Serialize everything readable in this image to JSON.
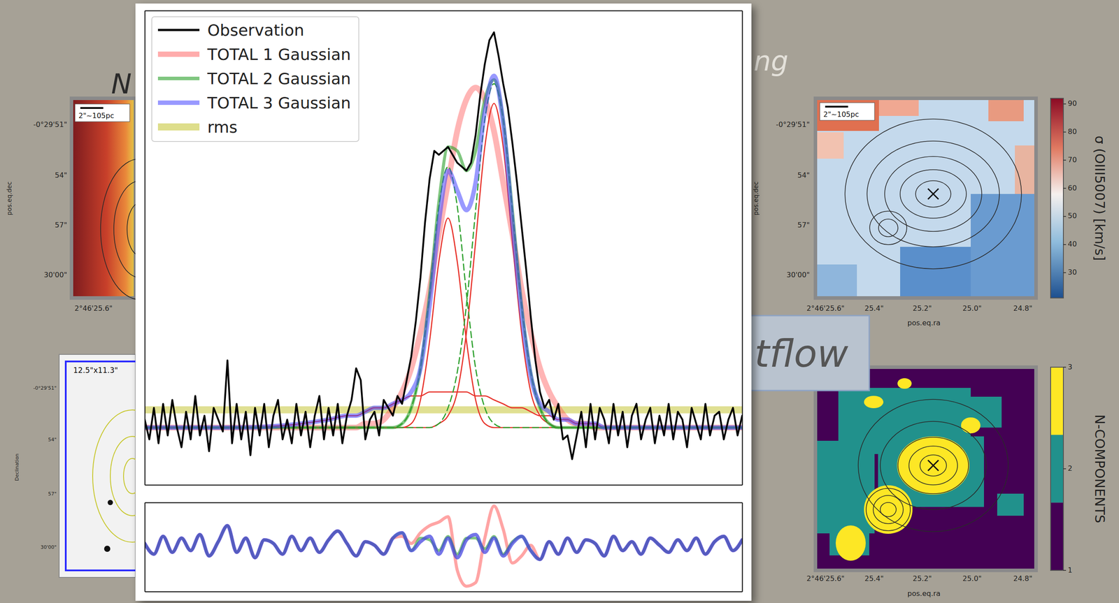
{
  "chart_data": [
    {
      "type": "line",
      "xlim": [
        0,
        130
      ],
      "ylim": [
        -0.145,
        1.055
      ],
      "tick_labels": false,
      "legend": "upper left",
      "x": [
        0,
        20,
        40,
        44,
        46,
        48,
        50,
        52,
        54,
        56,
        58,
        60,
        62,
        64,
        66,
        68,
        70,
        72,
        74,
        76,
        78,
        80,
        82,
        84,
        86,
        88,
        90,
        92,
        94,
        96,
        98,
        100,
        102,
        104,
        106,
        108,
        110,
        120,
        130
      ],
      "series": [
        {
          "name": "Observation",
          "color": "#000000",
          "line_style": "solid",
          "x": [
            0,
            1,
            2,
            3,
            4,
            5,
            6,
            7,
            8,
            9,
            10,
            11,
            12,
            13,
            14,
            15,
            16,
            17,
            18,
            19,
            20,
            21,
            22,
            23,
            24,
            25,
            26,
            27,
            28,
            29,
            30,
            31,
            32,
            33,
            34,
            35,
            36,
            37,
            38,
            39,
            40,
            41,
            42,
            43,
            44,
            45,
            46,
            47,
            48,
            49,
            50,
            51,
            52,
            53,
            54,
            55,
            56,
            57,
            58,
            59,
            60,
            61,
            62,
            63,
            64,
            65,
            66,
            67,
            68,
            69,
            70,
            71,
            72,
            73,
            74,
            75,
            76,
            77,
            78,
            79,
            80,
            81,
            82,
            83,
            84,
            85,
            86,
            87,
            88,
            89,
            90,
            91,
            92,
            93,
            94,
            95,
            96,
            97,
            98,
            99,
            100,
            101,
            102,
            103,
            104,
            105,
            106,
            107,
            108,
            109,
            110,
            111,
            112,
            113,
            114,
            115,
            116,
            117,
            118,
            119,
            120,
            121,
            122,
            123,
            124,
            125,
            126,
            127,
            128,
            129,
            130
          ],
          "values": [
            0.02,
            -0.03,
            0.05,
            -0.04,
            0.06,
            -0.02,
            0.07,
            0.0,
            -0.05,
            0.04,
            -0.03,
            0.08,
            -0.02,
            0.03,
            -0.06,
            0.05,
            0.02,
            -0.01,
            0.17,
            -0.04,
            0.06,
            -0.03,
            0.04,
            -0.07,
            0.05,
            -0.02,
            0.06,
            -0.05,
            0.03,
            0.07,
            -0.03,
            0.02,
            -0.04,
            0.06,
            -0.02,
            0.04,
            -0.05,
            0.03,
            0.08,
            -0.03,
            0.05,
            -0.02,
            0.06,
            -0.04,
            0.03,
            0.07,
            0.15,
            0.12,
            -0.03,
            0.02,
            0.04,
            -0.02,
            0.07,
            0.05,
            0.03,
            0.08,
            0.06,
            0.12,
            0.18,
            0.27,
            0.38,
            0.52,
            0.63,
            0.7,
            0.69,
            0.7,
            0.71,
            0.69,
            0.67,
            0.66,
            0.65,
            0.67,
            0.74,
            0.84,
            0.92,
            0.98,
            1.0,
            0.94,
            0.87,
            0.81,
            0.72,
            0.62,
            0.51,
            0.4,
            0.28,
            0.17,
            0.09,
            0.05,
            0.07,
            0.02,
            0.06,
            -0.03,
            -0.02,
            -0.08,
            -0.02,
            0.04,
            -0.05,
            0.06,
            -0.03,
            0.05,
            0.02,
            -0.04,
            0.06,
            -0.02,
            0.04,
            -0.05,
            0.03,
            0.06,
            -0.03,
            0.02,
            0.05,
            -0.04,
            0.03,
            -0.02,
            0.06,
            -0.03,
            0.04,
            0.02,
            -0.05,
            0.05,
            0.01,
            -0.03,
            0.06,
            -0.02,
            0.03,
            0.04,
            -0.03,
            0.02,
            0.05,
            -0.02,
            0.03
          ]
        },
        {
          "name": "TOTAL 1 Gaussian",
          "color": "#ff5a5a",
          "line_style": "solid",
          "values": [
            0,
            0,
            0,
            0,
            0,
            0.01,
            0.01,
            0.02,
            0.05,
            0.09,
            0.15,
            0.24,
            0.35,
            0.49,
            0.62,
            0.75,
            0.83,
            0.86,
            0.83,
            0.75,
            0.62,
            0.49,
            0.35,
            0.24,
            0.15,
            0.09,
            0.05,
            0.02,
            0.01,
            0.01,
            0,
            0,
            0,
            0,
            0,
            0,
            0,
            0,
            0
          ]
        },
        {
          "name": "TOTAL 2 Gaussian",
          "color": "#2ca02c",
          "line_style": "solid",
          "values": [
            0,
            0,
            0,
            0,
            0,
            0,
            0,
            0,
            0,
            0.01,
            0.05,
            0.15,
            0.34,
            0.57,
            0.71,
            0.7,
            0.65,
            0.7,
            0.83,
            0.88,
            0.78,
            0.55,
            0.31,
            0.14,
            0.05,
            0.01,
            0,
            0,
            0,
            0,
            0,
            0,
            0,
            0,
            0,
            0,
            0,
            0,
            0
          ]
        },
        {
          "name": "TOTAL 3 Gaussian",
          "color": "#4646ff",
          "line_style": "solid",
          "values": [
            0,
            0,
            0.02,
            0.03,
            0.03,
            0.04,
            0.05,
            0.05,
            0.06,
            0.07,
            0.09,
            0.15,
            0.31,
            0.52,
            0.65,
            0.6,
            0.55,
            0.62,
            0.8,
            0.89,
            0.77,
            0.52,
            0.29,
            0.13,
            0.06,
            0.04,
            0.02,
            0.02,
            0.01,
            0.01,
            0.01,
            0,
            0,
            0,
            0,
            0,
            0,
            0,
            0
          ]
        },
        {
          "name": "rms",
          "color": "#d6d66e",
          "line_style": "solid",
          "x": [
            0,
            130
          ],
          "values": [
            0.045,
            0.045
          ]
        }
      ],
      "components": [
        {
          "color": "#e8322a",
          "line_style": "solid",
          "values": [
            0,
            0,
            0,
            0,
            0,
            0,
            0,
            0,
            0,
            0,
            0.01,
            0.07,
            0.22,
            0.42,
            0.53,
            0.42,
            0.22,
            0.07,
            0.01,
            0,
            0,
            0,
            0,
            0,
            0,
            0,
            0,
            0,
            0,
            0,
            0,
            0,
            0,
            0,
            0,
            0,
            0,
            0,
            0
          ]
        },
        {
          "color": "#e8322a",
          "line_style": "solid",
          "values": [
            0,
            0,
            0,
            0,
            0,
            0,
            0,
            0,
            0,
            0,
            0,
            0,
            0,
            0.01,
            0.03,
            0.09,
            0.24,
            0.47,
            0.71,
            0.82,
            0.71,
            0.47,
            0.24,
            0.09,
            0.03,
            0.01,
            0,
            0,
            0,
            0,
            0,
            0,
            0,
            0,
            0,
            0,
            0,
            0,
            0
          ]
        },
        {
          "color": "#e8322a",
          "line_style": "solid",
          "values": [
            0,
            0,
            0.02,
            0.03,
            0.03,
            0.04,
            0.05,
            0.05,
            0.06,
            0.07,
            0.08,
            0.08,
            0.09,
            0.09,
            0.09,
            0.09,
            0.09,
            0.08,
            0.08,
            0.07,
            0.06,
            0.05,
            0.05,
            0.04,
            0.03,
            0.03,
            0.02,
            0.02,
            0.01,
            0.01,
            0.01,
            0,
            0,
            0,
            0,
            0,
            0,
            0,
            0
          ]
        },
        {
          "color": "#2ca02c",
          "line_style": "dashed",
          "values": [
            0,
            0,
            0,
            0,
            0,
            0,
            0,
            0,
            0,
            0.01,
            0.05,
            0.15,
            0.34,
            0.56,
            0.66,
            0.56,
            0.34,
            0.15,
            0.05,
            0.01,
            0,
            0,
            0,
            0,
            0,
            0,
            0,
            0,
            0,
            0,
            0,
            0,
            0,
            0,
            0,
            0,
            0,
            0,
            0
          ]
        },
        {
          "color": "#2ca02c",
          "line_style": "dashed",
          "values": [
            0,
            0,
            0,
            0,
            0,
            0,
            0,
            0,
            0,
            0,
            0,
            0,
            0,
            0.01,
            0.05,
            0.14,
            0.31,
            0.55,
            0.78,
            0.87,
            0.78,
            0.55,
            0.31,
            0.14,
            0.05,
            0.01,
            0,
            0,
            0,
            0,
            0,
            0,
            0,
            0,
            0,
            0,
            0,
            0,
            0
          ]
        }
      ]
    },
    {
      "type": "line",
      "xlim": [
        0,
        130
      ],
      "ylim": [
        -0.25,
        0.25
      ],
      "tick_labels": false,
      "x": [
        0,
        2,
        4,
        6,
        8,
        10,
        12,
        14,
        16,
        18,
        20,
        22,
        24,
        26,
        28,
        30,
        32,
        34,
        36,
        38,
        40,
        42,
        44,
        46,
        48,
        50,
        52,
        54,
        56,
        58,
        60,
        62,
        64,
        66,
        68,
        70,
        72,
        74,
        76,
        78,
        80,
        82,
        84,
        86,
        88,
        90,
        92,
        94,
        96,
        98,
        100,
        102,
        104,
        106,
        108,
        110,
        112,
        114,
        116,
        118,
        120,
        122,
        124,
        126,
        128,
        130
      ],
      "series": [
        {
          "color": "#ff5a5a",
          "line_style": "solid",
          "values": [
            0.02,
            -0.04,
            0.06,
            -0.03,
            0.05,
            -0.02,
            0.07,
            -0.05,
            0.03,
            0.12,
            -0.03,
            0.05,
            -0.06,
            0.04,
            0.02,
            -0.04,
            0.06,
            -0.02,
            0.05,
            -0.03,
            0.04,
            0.09,
            0.02,
            -0.05,
            0.03,
            0.01,
            -0.04,
            0.05,
            0.06,
            0.02,
            0.08,
            0.12,
            0.14,
            0.17,
            -0.13,
            -0.22,
            -0.2,
            0.05,
            0.23,
            0.1,
            -0.09,
            -0.05,
            0.01,
            -0.07,
            0.03,
            -0.04,
            0.05,
            -0.03,
            0.04,
            0.02,
            -0.05,
            0.06,
            -0.02,
            0.03,
            -0.04,
            0.05,
            0.01,
            -0.03,
            0.04,
            -0.02,
            0.05,
            -0.04,
            0.03,
            0.06,
            -0.02,
            0.04
          ]
        },
        {
          "color": "#2ca02c",
          "line_style": "solid",
          "values": [
            0.02,
            -0.04,
            0.06,
            -0.03,
            0.05,
            -0.02,
            0.07,
            -0.05,
            0.03,
            0.12,
            -0.03,
            0.05,
            -0.06,
            0.04,
            0.02,
            -0.04,
            0.06,
            -0.02,
            0.05,
            -0.03,
            0.04,
            0.09,
            0.02,
            -0.05,
            0.03,
            0.01,
            -0.04,
            0.05,
            0.08,
            -0.02,
            0.05,
            0.04,
            -0.02,
            0.06,
            -0.04,
            0.05,
            0.05,
            -0.01,
            0.06,
            -0.04,
            0.03,
            0.06,
            -0.02,
            -0.07,
            0.03,
            -0.04,
            0.05,
            -0.03,
            0.04,
            0.02,
            -0.05,
            0.06,
            -0.02,
            0.03,
            -0.04,
            0.05,
            0.01,
            -0.03,
            0.04,
            -0.02,
            0.05,
            -0.04,
            0.03,
            0.06,
            -0.02,
            0.04
          ]
        },
        {
          "color": "#4646e0",
          "line_style": "solid",
          "values": [
            0.02,
            -0.04,
            0.06,
            -0.03,
            0.05,
            -0.02,
            0.07,
            -0.05,
            0.03,
            0.12,
            -0.03,
            0.05,
            -0.06,
            0.04,
            0.02,
            -0.04,
            0.06,
            -0.02,
            0.05,
            -0.03,
            0.04,
            0.09,
            0.02,
            -0.05,
            0.03,
            0.01,
            -0.04,
            0.05,
            0.08,
            -0.02,
            0.03,
            0.06,
            -0.04,
            0.05,
            -0.06,
            0.04,
            0.07,
            -0.03,
            0.05,
            -0.05,
            0.02,
            0.06,
            -0.02,
            -0.07,
            0.03,
            -0.04,
            0.05,
            -0.03,
            0.04,
            0.02,
            -0.05,
            0.06,
            -0.02,
            0.03,
            -0.04,
            0.05,
            0.01,
            -0.03,
            0.04,
            -0.02,
            0.05,
            -0.04,
            0.03,
            0.06,
            -0.02,
            0.04
          ]
        }
      ]
    }
  ],
  "slide": {
    "heading_left": "N",
    "heading_right": "ng",
    "callout": "tflow",
    "maps": [
      {
        "scale_bar": "2\"~105pc",
        "y_ticks": [
          "-0°29'51\"",
          "54\"",
          "57\"",
          "30'00\""
        ],
        "x_ticks": [
          "2°46'25.6\""
        ],
        "y_label": "pos.eq.dec"
      },
      {
        "box_label": "12.5\"x11.3\"",
        "y_ticks": [
          "-0°29'51\"",
          "54\"",
          "57\"",
          "30'00\""
        ],
        "y_label": "Declination"
      },
      {
        "scale_bar": "2\"~105pc",
        "y_ticks": [
          "-0°29'51\"",
          "54\"",
          "57\"",
          "30'00\""
        ],
        "x_ticks": [
          "2°46'25.6\"",
          "25.4\"",
          "25.2\"",
          "25.0\"",
          "24.8\""
        ],
        "x_label": "pos.eq.ra",
        "y_label": "pos.eq.dec",
        "colorbar": {
          "label": "σ (OIII5007) [km/s]",
          "range": [
            21,
            92
          ],
          "ticks": [
            30,
            40,
            50,
            60,
            70,
            80,
            90
          ]
        }
      },
      {
        "x_ticks": [
          "2°46'25.6\"",
          "25.4\"",
          "25.2\"",
          "25.0\"",
          "24.8\""
        ],
        "x_label": "pos.eq.ra",
        "colorbar": {
          "label": "N-COMPONENTS",
          "range": [
            1,
            3
          ],
          "ticks": [
            1,
            2,
            3
          ]
        }
      }
    ]
  }
}
